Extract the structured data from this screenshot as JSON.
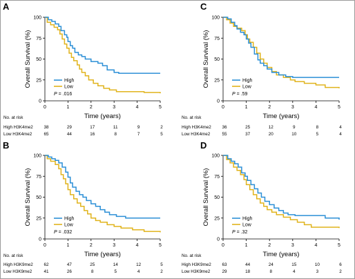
{
  "colors": {
    "high": "#2b8fd6",
    "low": "#e0b31b",
    "axis": "#000000"
  },
  "chart_data": [
    {
      "panel": "A",
      "type": "line",
      "step": true,
      "xlabel": "Time (years)",
      "ylabel": "Overall Survival (%)",
      "xlim": [
        0,
        5
      ],
      "ylim": [
        0,
        100
      ],
      "xticks": [
        0,
        1,
        2,
        3,
        4,
        5
      ],
      "yticks": [
        0,
        25,
        50,
        75,
        100
      ],
      "legend": "lower-left",
      "p_label": "P",
      "p_value": "= .016",
      "series": [
        {
          "name": "High",
          "color": "#2b8fd6",
          "points": [
            [
              0,
              100
            ],
            [
              0.15,
              97
            ],
            [
              0.3,
              95
            ],
            [
              0.45,
              92
            ],
            [
              0.6,
              89
            ],
            [
              0.7,
              84
            ],
            [
              0.85,
              79
            ],
            [
              0.95,
              76
            ],
            [
              1.0,
              71
            ],
            [
              1.1,
              66
            ],
            [
              1.2,
              63
            ],
            [
              1.3,
              58
            ],
            [
              1.45,
              55
            ],
            [
              1.6,
              53
            ],
            [
              1.75,
              50
            ],
            [
              2.0,
              47
            ],
            [
              2.3,
              45
            ],
            [
              2.5,
              42
            ],
            [
              2.7,
              37
            ],
            [
              3.0,
              34
            ],
            [
              3.2,
              33
            ],
            [
              5.0,
              33
            ]
          ]
        },
        {
          "name": "Low",
          "color": "#e0b31b",
          "points": [
            [
              0,
              100
            ],
            [
              0.1,
              94
            ],
            [
              0.25,
              91
            ],
            [
              0.4,
              88
            ],
            [
              0.55,
              85
            ],
            [
              0.65,
              80
            ],
            [
              0.75,
              74
            ],
            [
              0.85,
              68
            ],
            [
              0.95,
              63
            ],
            [
              1.05,
              57
            ],
            [
              1.15,
              52
            ],
            [
              1.25,
              48
            ],
            [
              1.4,
              43
            ],
            [
              1.5,
              38
            ],
            [
              1.6,
              34
            ],
            [
              1.75,
              30
            ],
            [
              1.9,
              25
            ],
            [
              2.1,
              21
            ],
            [
              2.3,
              18
            ],
            [
              2.55,
              15
            ],
            [
              2.8,
              13
            ],
            [
              3.1,
              11
            ],
            [
              3.8,
              11
            ],
            [
              4.3,
              10
            ],
            [
              5.0,
              9
            ]
          ]
        }
      ],
      "risk_table": {
        "title": "No. at risk",
        "rows": [
          {
            "label": "High H3K4me2",
            "values": [
              "38",
              "29",
              "17",
              "11",
              "9",
              "2"
            ]
          },
          {
            "label": "Low H3K4me2",
            "values": [
              "65",
              "44",
              "16",
              "8",
              "7",
              "5"
            ]
          }
        ]
      }
    },
    {
      "panel": "C",
      "type": "line",
      "step": true,
      "xlabel": "Time (years)",
      "ylabel": "Overall Survival (%)",
      "xlim": [
        0,
        5
      ],
      "ylim": [
        0,
        100
      ],
      "xticks": [
        0,
        1,
        2,
        3,
        4,
        5
      ],
      "yticks": [
        0,
        25,
        50,
        75,
        100
      ],
      "legend": "lower-left",
      "p_label": "P",
      "p_value": "= .59",
      "series": [
        {
          "name": "High",
          "color": "#2b8fd6",
          "points": [
            [
              0,
              100
            ],
            [
              0.2,
              98
            ],
            [
              0.35,
              94
            ],
            [
              0.5,
              90
            ],
            [
              0.6,
              86
            ],
            [
              0.75,
              82
            ],
            [
              0.9,
              79
            ],
            [
              1.0,
              74
            ],
            [
              1.1,
              69
            ],
            [
              1.2,
              64
            ],
            [
              1.35,
              56
            ],
            [
              1.5,
              49
            ],
            [
              1.6,
              45
            ],
            [
              1.75,
              42
            ],
            [
              1.9,
              38
            ],
            [
              2.1,
              34
            ],
            [
              2.4,
              31
            ],
            [
              2.7,
              29
            ],
            [
              3.0,
              28
            ],
            [
              5.0,
              28
            ]
          ]
        },
        {
          "name": "Low",
          "color": "#e0b31b",
          "points": [
            [
              0,
              100
            ],
            [
              0.15,
              97
            ],
            [
              0.3,
              93
            ],
            [
              0.45,
              89
            ],
            [
              0.6,
              87
            ],
            [
              0.8,
              84
            ],
            [
              0.95,
              79
            ],
            [
              1.05,
              74
            ],
            [
              1.15,
              70
            ],
            [
              1.3,
              64
            ],
            [
              1.45,
              57
            ],
            [
              1.6,
              50
            ],
            [
              1.75,
              45
            ],
            [
              1.9,
              40
            ],
            [
              2.1,
              35
            ],
            [
              2.3,
              31
            ],
            [
              2.6,
              28
            ],
            [
              2.9,
              25
            ],
            [
              3.1,
              23
            ],
            [
              3.5,
              21
            ],
            [
              4.0,
              19
            ],
            [
              4.4,
              16
            ],
            [
              5.0,
              15
            ]
          ]
        }
      ],
      "risk_table": {
        "title": "No. at risk",
        "rows": [
          {
            "label": "High H3K4me2",
            "values": [
              "36",
              "25",
              "12",
              "9",
              "8",
              "4"
            ]
          },
          {
            "label": "Low H3K4me2",
            "values": [
              "55",
              "37",
              "20",
              "10",
              "5",
              "4"
            ]
          }
        ]
      }
    },
    {
      "panel": "B",
      "type": "line",
      "step": true,
      "xlabel": "Time (years)",
      "ylabel": "Overall Survival (%)",
      "xlim": [
        0,
        5
      ],
      "ylim": [
        0,
        100
      ],
      "xticks": [
        0,
        1,
        2,
        3,
        4,
        5
      ],
      "yticks": [
        0,
        25,
        50,
        75,
        100
      ],
      "legend": "lower-left",
      "p_label": "P",
      "p_value": "= .032",
      "series": [
        {
          "name": "High",
          "color": "#2b8fd6",
          "points": [
            [
              0,
              100
            ],
            [
              0.15,
              98
            ],
            [
              0.3,
              96
            ],
            [
              0.45,
              94
            ],
            [
              0.6,
              91
            ],
            [
              0.75,
              86
            ],
            [
              0.9,
              80
            ],
            [
              1.0,
              74
            ],
            [
              1.1,
              67
            ],
            [
              1.2,
              62
            ],
            [
              1.35,
              57
            ],
            [
              1.5,
              53
            ],
            [
              1.65,
              50
            ],
            [
              1.8,
              46
            ],
            [
              2.0,
              42
            ],
            [
              2.2,
              39
            ],
            [
              2.4,
              35
            ],
            [
              2.6,
              32
            ],
            [
              2.8,
              29
            ],
            [
              3.1,
              27
            ],
            [
              3.5,
              25
            ],
            [
              5.0,
              25
            ]
          ]
        },
        {
          "name": "Low",
          "color": "#e0b31b",
          "points": [
            [
              0,
              100
            ],
            [
              0.1,
              96
            ],
            [
              0.25,
              93
            ],
            [
              0.45,
              89
            ],
            [
              0.6,
              84
            ],
            [
              0.7,
              77
            ],
            [
              0.8,
              72
            ],
            [
              0.9,
              66
            ],
            [
              1.0,
              59
            ],
            [
              1.1,
              53
            ],
            [
              1.25,
              48
            ],
            [
              1.4,
              43
            ],
            [
              1.55,
              39
            ],
            [
              1.7,
              34
            ],
            [
              1.85,
              30
            ],
            [
              2.0,
              25
            ],
            [
              2.2,
              22
            ],
            [
              2.4,
              20
            ],
            [
              2.7,
              17
            ],
            [
              3.0,
              15
            ],
            [
              3.3,
              13
            ],
            [
              3.8,
              11
            ],
            [
              4.3,
              9
            ],
            [
              5.0,
              8
            ]
          ]
        }
      ],
      "risk_table": {
        "title": "No. at risk",
        "rows": [
          {
            "label": "High H3K9me2",
            "values": [
              "62",
              "47",
              "25",
              "14",
              "12",
              "5"
            ]
          },
          {
            "label": "Low H3K9me2",
            "values": [
              "41",
              "26",
              "8",
              "5",
              "4",
              "2"
            ]
          }
        ]
      }
    },
    {
      "panel": "D",
      "type": "line",
      "step": true,
      "xlabel": "Time (years)",
      "ylabel": "Overall Survival (%)",
      "xlim": [
        0,
        5
      ],
      "ylim": [
        0,
        100
      ],
      "xticks": [
        0,
        1,
        2,
        3,
        4,
        5
      ],
      "yticks": [
        0,
        25,
        50,
        75,
        100
      ],
      "legend": "lower-left",
      "p_label": "P",
      "p_value": "= .32",
      "series": [
        {
          "name": "High",
          "color": "#2b8fd6",
          "points": [
            [
              0,
              100
            ],
            [
              0.2,
              96
            ],
            [
              0.35,
              93
            ],
            [
              0.5,
              90
            ],
            [
              0.65,
              86
            ],
            [
              0.8,
              79
            ],
            [
              0.95,
              75
            ],
            [
              1.05,
              70
            ],
            [
              1.2,
              65
            ],
            [
              1.35,
              60
            ],
            [
              1.5,
              55
            ],
            [
              1.65,
              50
            ],
            [
              1.8,
              45
            ],
            [
              2.0,
              41
            ],
            [
              2.2,
              37
            ],
            [
              2.4,
              34
            ],
            [
              2.6,
              31
            ],
            [
              2.8,
              29
            ],
            [
              3.1,
              28
            ],
            [
              3.6,
              28
            ],
            [
              4.4,
              25
            ],
            [
              5.0,
              23
            ]
          ]
        },
        {
          "name": "Low",
          "color": "#e0b31b",
          "points": [
            [
              0,
              100
            ],
            [
              0.15,
              95
            ],
            [
              0.3,
              91
            ],
            [
              0.45,
              86
            ],
            [
              0.6,
              82
            ],
            [
              0.75,
              77
            ],
            [
              0.9,
              71
            ],
            [
              1.0,
              65
            ],
            [
              1.15,
              59
            ],
            [
              1.3,
              53
            ],
            [
              1.45,
              48
            ],
            [
              1.6,
              43
            ],
            [
              1.75,
              39
            ],
            [
              1.9,
              35
            ],
            [
              2.1,
              32
            ],
            [
              2.3,
              29
            ],
            [
              2.6,
              26
            ],
            [
              2.9,
              23
            ],
            [
              3.2,
              20
            ],
            [
              3.5,
              17
            ],
            [
              3.8,
              14
            ],
            [
              5.0,
              13
            ]
          ]
        }
      ],
      "risk_table": {
        "title": "No. at risk",
        "rows": [
          {
            "label": "High H3K9me2",
            "values": [
              "63",
              "44",
              "24",
              "15",
              "10",
              "6"
            ]
          },
          {
            "label": "Low H3K9me2",
            "values": [
              "29",
              "18",
              "8",
              "4",
              "3",
              "2"
            ]
          }
        ]
      }
    }
  ]
}
